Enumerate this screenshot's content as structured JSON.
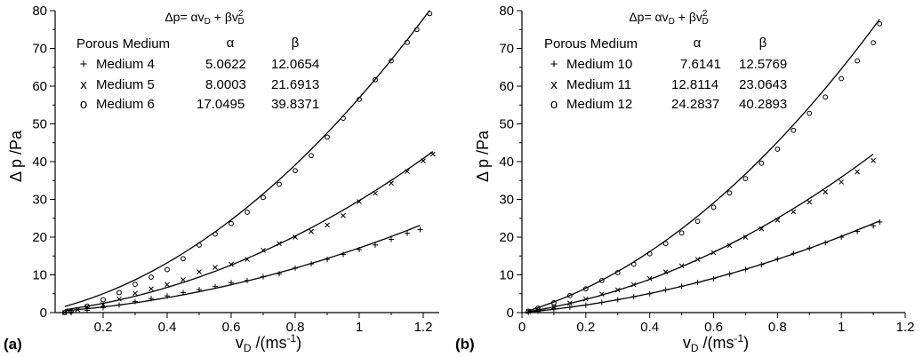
{
  "chart_data": [
    {
      "type": "scatter",
      "panel_label": "(a)",
      "formula": {
        "base": "Δp= αv",
        "sub1": "D",
        "mid": " + βv",
        "sup2": "2",
        "sub2": "D"
      },
      "table": {
        "headers": [
          "Porous Medium",
          "α",
          "β"
        ],
        "rows": [
          {
            "marker": "+",
            "name": "Medium 4",
            "alpha": "5.0622",
            "beta": "12.0654"
          },
          {
            "marker": "x",
            "name": "Medium 5",
            "alpha": "8.0003",
            "beta": "21.6913"
          },
          {
            "marker": "o",
            "name": "Medium 6",
            "alpha": "17.0495",
            "beta": "39.8371"
          }
        ]
      },
      "xlabel": {
        "pre": "v",
        "sub": "D",
        "post": " /(ms",
        "sup": "-1",
        "end": ")"
      },
      "ylabel": "Δ p /Pa",
      "xlim": [
        0.05,
        1.25
      ],
      "ylim": [
        0,
        80
      ],
      "xticks": [
        0.2,
        0.4,
        0.6,
        0.8,
        1,
        1.2
      ],
      "xtick_labels": [
        "0.2",
        "0.4",
        "0.6",
        "0.8",
        "1",
        "1.2"
      ],
      "yticks": [
        0,
        10,
        20,
        30,
        40,
        50,
        60,
        70,
        80
      ],
      "ytick_labels": [
        "0",
        "10",
        "20",
        "30",
        "40",
        "50",
        "60",
        "70",
        "80"
      ],
      "series": [
        {
          "marker": "+",
          "fit": {
            "alpha": 5.0622,
            "beta": 12.0654,
            "x_range": [
              0.08,
              1.19
            ]
          },
          "x": [
            0.1,
            0.15,
            0.2,
            0.25,
            0.3,
            0.35,
            0.4,
            0.45,
            0.5,
            0.55,
            0.6,
            0.65,
            0.7,
            0.75,
            0.8,
            0.85,
            0.9,
            0.95,
            1.0,
            1.05,
            1.1,
            1.15,
            1.19
          ],
          "y": [
            0.2,
            0.6,
            1.3,
            2.0,
            2.9,
            3.7,
            4.4,
            5.3,
            6.1,
            6.9,
            7.9,
            8.5,
            9.5,
            10.3,
            11.8,
            12.9,
            14.1,
            15.4,
            16.7,
            17.9,
            19.4,
            21.0,
            22.0
          ]
        },
        {
          "marker": "x",
          "fit": {
            "alpha": 8.0003,
            "beta": 21.6913,
            "x_range": [
              0.08,
              1.23
            ]
          },
          "x": [
            0.08,
            0.12,
            0.15,
            0.2,
            0.25,
            0.3,
            0.35,
            0.4,
            0.45,
            0.5,
            0.55,
            0.6,
            0.65,
            0.7,
            0.75,
            0.8,
            0.85,
            0.9,
            0.95,
            1.0,
            1.05,
            1.1,
            1.15,
            1.2,
            1.23
          ],
          "y": [
            0.0,
            0.8,
            1.5,
            2.1,
            3.6,
            5.1,
            6.3,
            7.4,
            8.7,
            10.8,
            12.0,
            12.8,
            14.1,
            16.5,
            18.3,
            20.0,
            21.5,
            23.2,
            25.7,
            29.4,
            31.6,
            34.3,
            37.4,
            40.2,
            42.0
          ]
        },
        {
          "marker": "o",
          "fit": {
            "alpha": 17.0495,
            "beta": 39.8371,
            "x_range": [
              0.08,
              1.22
            ]
          },
          "x": [
            0.08,
            0.1,
            0.15,
            0.2,
            0.25,
            0.3,
            0.35,
            0.4,
            0.45,
            0.5,
            0.55,
            0.6,
            0.65,
            0.7,
            0.75,
            0.8,
            0.85,
            0.9,
            0.95,
            1.0,
            1.05,
            1.1,
            1.15,
            1.18,
            1.22
          ],
          "y": [
            0.0,
            0.3,
            1.7,
            3.4,
            5.3,
            7.5,
            9.4,
            11.4,
            14.3,
            17.9,
            20.8,
            23.6,
            26.6,
            30.5,
            34.0,
            37.6,
            41.6,
            46.5,
            51.5,
            56.5,
            61.7,
            66.7,
            71.6,
            75.0,
            79.2
          ]
        }
      ]
    },
    {
      "type": "scatter",
      "panel_label": "(b)",
      "formula": {
        "base": "Δp= αv",
        "sub1": "D",
        "mid": " + βv",
        "sup2": "2",
        "sub2": "D"
      },
      "table": {
        "headers": [
          "Porous Medium",
          "α",
          "β"
        ],
        "rows": [
          {
            "marker": "+",
            "name": "Medium 10",
            "alpha": "7.6141",
            "beta": "12.5769"
          },
          {
            "marker": "x",
            "name": "Medium 11",
            "alpha": "12.8114",
            "beta": "23.0643"
          },
          {
            "marker": "o",
            "name": "Medium 12",
            "alpha": "24.2837",
            "beta": "40.2893"
          }
        ]
      },
      "xlabel": {
        "pre": "v",
        "sub": "D",
        "post": " /(ms",
        "sup": "-1",
        "end": ")"
      },
      "ylabel": "Δ p /Pa",
      "xlim": [
        0,
        1.2
      ],
      "ylim": [
        0,
        80
      ],
      "xticks": [
        0,
        0.2,
        0.4,
        0.6,
        0.8,
        1,
        1.2
      ],
      "xtick_labels": [
        "0",
        "0.2",
        "0.4",
        "0.6",
        "0.8",
        "1",
        "1.2"
      ],
      "yticks": [
        0,
        10,
        20,
        30,
        40,
        50,
        60,
        70,
        80
      ],
      "ytick_labels": [
        "0",
        "10",
        "20",
        "30",
        "40",
        "50",
        "60",
        "70",
        "80"
      ],
      "series": [
        {
          "marker": "+",
          "fit": {
            "alpha": 7.6141,
            "beta": 12.5769,
            "x_range": [
              0.02,
              1.12
            ]
          },
          "x": [
            0.02,
            0.05,
            0.1,
            0.15,
            0.2,
            0.25,
            0.3,
            0.35,
            0.4,
            0.45,
            0.5,
            0.55,
            0.6,
            0.65,
            0.7,
            0.75,
            0.8,
            0.85,
            0.9,
            0.95,
            1.0,
            1.05,
            1.1,
            1.12
          ],
          "y": [
            0.1,
            0.4,
            0.9,
            1.4,
            2.0,
            2.7,
            3.4,
            4.2,
            5.0,
            6.0,
            7.0,
            8.0,
            9.0,
            10.2,
            11.4,
            12.7,
            14.2,
            15.7,
            17.1,
            18.5,
            20.0,
            21.5,
            23.0,
            24.0
          ]
        },
        {
          "marker": "x",
          "fit": {
            "alpha": 12.8114,
            "beta": 23.0643,
            "x_range": [
              0.02,
              1.1
            ]
          },
          "x": [
            0.02,
            0.05,
            0.1,
            0.15,
            0.2,
            0.25,
            0.3,
            0.35,
            0.4,
            0.45,
            0.5,
            0.55,
            0.6,
            0.65,
            0.7,
            0.75,
            0.8,
            0.85,
            0.9,
            0.95,
            1.0,
            1.05,
            1.1
          ],
          "y": [
            0.3,
            0.7,
            1.5,
            2.5,
            3.6,
            4.9,
            6.0,
            7.4,
            9.0,
            10.8,
            12.4,
            14.1,
            15.9,
            17.8,
            20.0,
            22.2,
            24.5,
            26.7,
            29.3,
            32.0,
            34.6,
            37.3,
            40.3
          ]
        },
        {
          "marker": "o",
          "fit": {
            "alpha": 24.2837,
            "beta": 40.2893,
            "x_range": [
              0.02,
              1.12
            ]
          },
          "x": [
            0.02,
            0.05,
            0.1,
            0.15,
            0.2,
            0.25,
            0.3,
            0.35,
            0.4,
            0.45,
            0.5,
            0.55,
            0.6,
            0.65,
            0.7,
            0.75,
            0.8,
            0.85,
            0.9,
            0.95,
            1.0,
            1.05,
            1.1,
            1.12
          ],
          "y": [
            0.4,
            1.2,
            2.6,
            4.5,
            6.3,
            8.5,
            10.6,
            12.8,
            15.6,
            18.3,
            21.1,
            24.2,
            27.9,
            31.7,
            35.5,
            39.6,
            43.3,
            48.3,
            52.8,
            57.1,
            62.0,
            66.7,
            71.5,
            76.5
          ]
        }
      ]
    }
  ]
}
